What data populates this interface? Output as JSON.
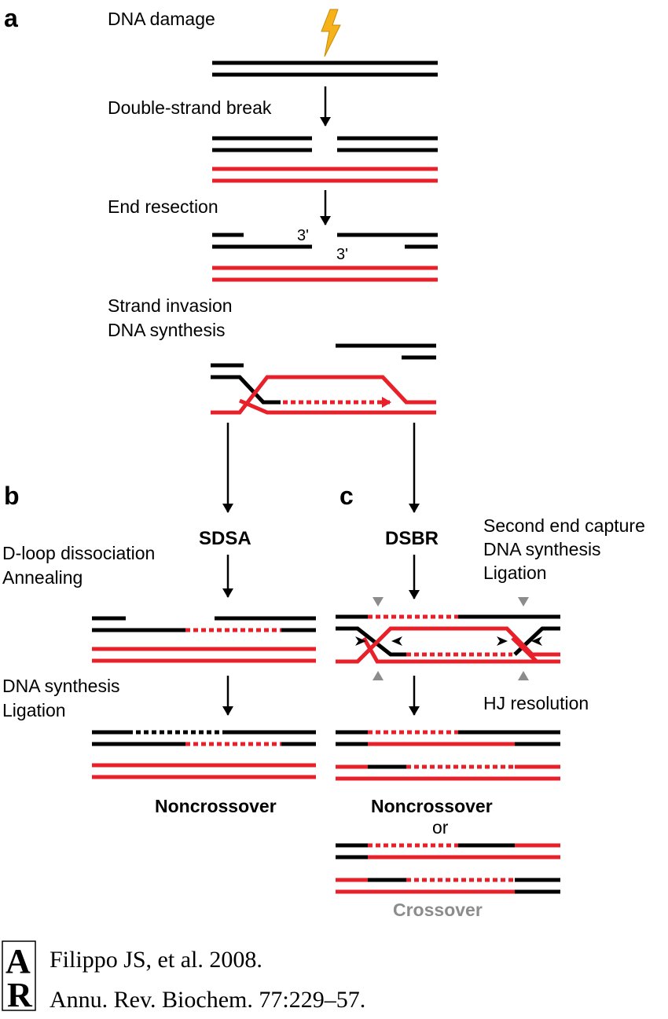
{
  "panels": {
    "a": "a",
    "b": "b",
    "c": "c"
  },
  "steps": {
    "dna_damage": "DNA damage",
    "double_strand_break": "Double-strand break",
    "end_resection": "End resection",
    "three_prime_top": "3'",
    "three_prime_bottom": "3'",
    "strand_invasion": "Strand invasion",
    "dna_synthesis_a": "DNA synthesis"
  },
  "pathway_b": {
    "name": "SDSA",
    "step1_line1": "D-loop dissociation",
    "step1_line2": "Annealing",
    "step2_line1": "DNA synthesis",
    "step2_line2": "Ligation",
    "outcome": "Noncrossover"
  },
  "pathway_c": {
    "name": "DSBR",
    "step1_line1": "Second end capture",
    "step1_line2": "DNA synthesis",
    "step1_line3": "Ligation",
    "step2": "HJ resolution",
    "outcome1": "Noncrossover",
    "or": "or",
    "outcome2": "Crossover"
  },
  "citation": {
    "logo": "AR",
    "line1": "Filippo JS, et al. 2008.",
    "line2": "Annu. Rev. Biochem. 77:229–57."
  },
  "colors": {
    "damaged_dna": "#000000",
    "homologous_dna": "#e8202a",
    "new_synthesis": "#e8202a",
    "lightning": "#f6b21b",
    "resolution_markers": "#8c8c8c"
  }
}
